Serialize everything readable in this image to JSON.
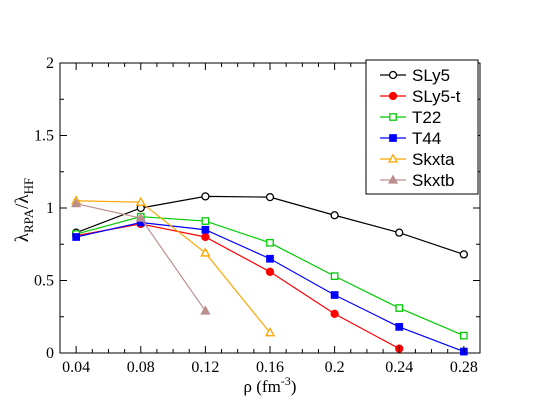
{
  "chart_data": {
    "type": "line",
    "x_ticks": [
      "0.04",
      "0.08",
      "0.12",
      "0.16",
      "0.2",
      "0.24",
      "0.28"
    ],
    "y_ticks": [
      "0",
      "0.5",
      "1",
      "1.5",
      "2"
    ],
    "xlim": [
      0.03,
      0.29
    ],
    "ylim": [
      0,
      2
    ],
    "xlabel": {
      "main": "ρ (fm",
      "sup": "-3",
      "end": ")"
    },
    "ylabel": {
      "l1": "λ",
      "s1": "RPA",
      "mid": "/λ",
      "s2": "HF"
    },
    "grid": false,
    "legend_position": "top-right",
    "series": [
      {
        "name": "SLy5",
        "color": "#000000",
        "marker": "circle",
        "filled": false,
        "x": [
          0.04,
          0.08,
          0.12,
          0.16,
          0.2,
          0.24,
          0.28
        ],
        "y": [
          0.83,
          1.0,
          1.08,
          1.075,
          0.95,
          0.83,
          0.68
        ]
      },
      {
        "name": "SLy5-t",
        "color": "#ff0000",
        "marker": "circle",
        "filled": true,
        "x": [
          0.04,
          0.08,
          0.12,
          0.16,
          0.2,
          0.24
        ],
        "y": [
          0.81,
          0.89,
          0.8,
          0.56,
          0.27,
          0.03
        ]
      },
      {
        "name": "T22",
        "color": "#00cc00",
        "marker": "square",
        "filled": false,
        "x": [
          0.04,
          0.08,
          0.12,
          0.16,
          0.2,
          0.24,
          0.28
        ],
        "y": [
          0.82,
          0.94,
          0.91,
          0.76,
          0.53,
          0.31,
          0.12
        ]
      },
      {
        "name": "T44",
        "color": "#0000ff",
        "marker": "square",
        "filled": true,
        "x": [
          0.04,
          0.08,
          0.12,
          0.16,
          0.2,
          0.24,
          0.28
        ],
        "y": [
          0.8,
          0.9,
          0.85,
          0.65,
          0.4,
          0.18,
          0.01
        ]
      },
      {
        "name": "Skxta",
        "color": "#ffa500",
        "marker": "triangle",
        "filled": false,
        "x": [
          0.04,
          0.08,
          0.12,
          0.16
        ],
        "y": [
          1.05,
          1.04,
          0.69,
          0.14
        ]
      },
      {
        "name": "Skxtb",
        "color": "#bc8f8f",
        "marker": "triangle",
        "filled": true,
        "x": [
          0.04,
          0.08,
          0.12
        ],
        "y": [
          1.03,
          0.93,
          0.29
        ]
      }
    ]
  }
}
